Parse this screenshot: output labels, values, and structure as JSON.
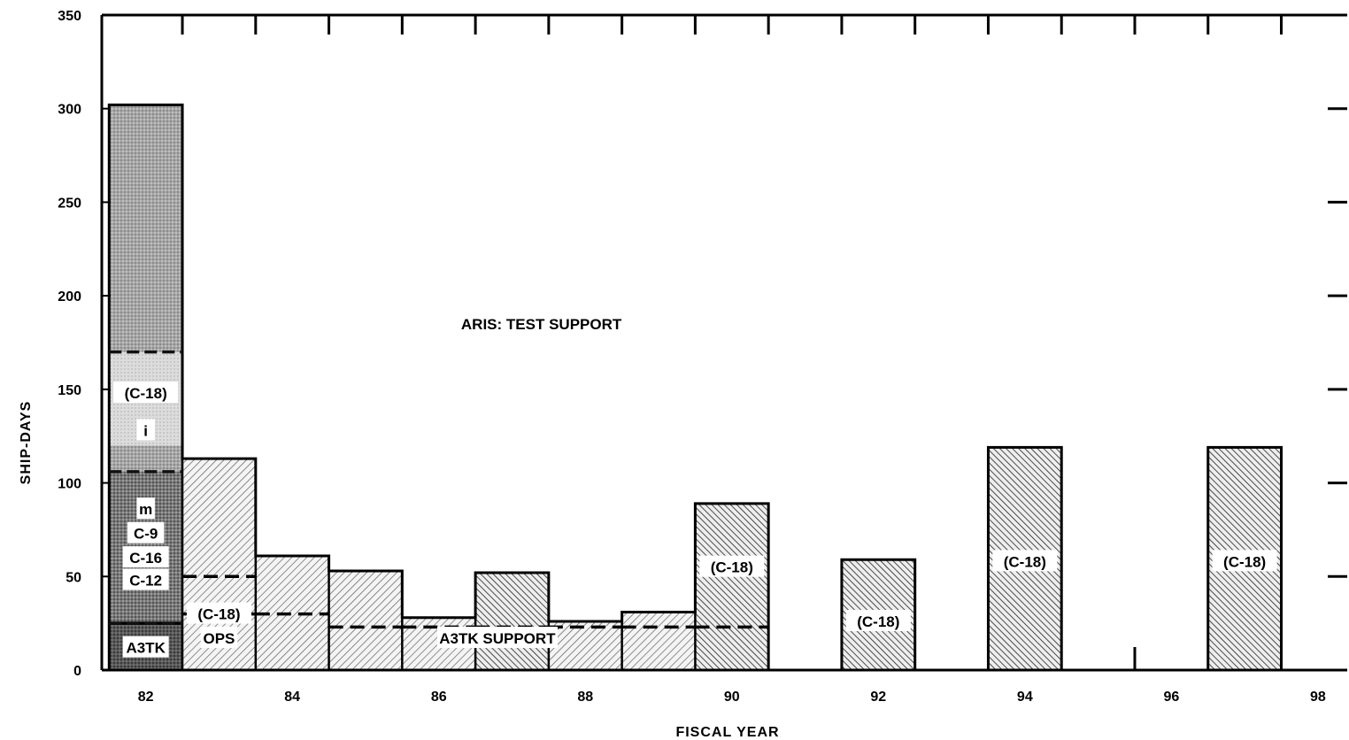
{
  "chart_data": {
    "type": "bar",
    "title": "",
    "xlabel": "FISCAL YEAR",
    "ylabel": "SHIP-DAYS",
    "xlim": [
      81.4,
      98.4
    ],
    "ylim": [
      0,
      350
    ],
    "x_ticks": [
      "82",
      "84",
      "86",
      "88",
      "90",
      "92",
      "94",
      "96",
      "98"
    ],
    "y_ticks": [
      "0",
      "50",
      "100",
      "150",
      "200",
      "250",
      "300",
      "350"
    ],
    "grid": false,
    "legend": "none",
    "series": [
      {
        "name": "ARIS: TEST SUPPORT",
        "x": [
          82,
          83,
          84,
          85,
          86,
          87,
          88,
          89,
          90,
          92,
          94,
          97
        ],
        "values": [
          302,
          113,
          61,
          53,
          28,
          52,
          26,
          31,
          89,
          59,
          119,
          119
        ]
      },
      {
        "name": "A3TK SUPPORT",
        "x": [
          82,
          83,
          84,
          85,
          86,
          87,
          88,
          89,
          90
        ],
        "values": [
          25,
          30,
          30,
          23,
          23,
          23,
          23,
          23,
          23
        ]
      },
      {
        "name": "(C-18) OPS",
        "x": [
          83
        ],
        "values": [
          50
        ]
      }
    ],
    "fy82_stack_boundaries": [
      25,
      106,
      170
    ],
    "annotations": [
      {
        "text": "ARIS:  TEST SUPPORT",
        "x": 87.4,
        "y": 185
      },
      {
        "text": "A3TK SUPPORT",
        "x": 86.8,
        "y": 17
      },
      {
        "text": "(C-18)",
        "x": 83.0,
        "y": 30
      },
      {
        "text": "OPS",
        "x": 83.0,
        "y": 17
      },
      {
        "text": "A3TK",
        "x": 82,
        "y": 12
      },
      {
        "text": "C-12",
        "x": 82,
        "y": 48
      },
      {
        "text": "C-16",
        "x": 82,
        "y": 60
      },
      {
        "text": "C-9",
        "x": 82,
        "y": 73
      },
      {
        "text": "m",
        "x": 82,
        "y": 86
      },
      {
        "text": "(C-18)",
        "x": 82,
        "y": 148
      },
      {
        "text": "i",
        "x": 82,
        "y": 128
      },
      {
        "text": "(C-18)",
        "x": 90,
        "y": 55
      },
      {
        "text": "(C-18)",
        "x": 92,
        "y": 26
      },
      {
        "text": "(C-18)",
        "x": 94,
        "y": 58
      },
      {
        "text": "(C-18)",
        "x": 97,
        "y": 58
      }
    ]
  }
}
